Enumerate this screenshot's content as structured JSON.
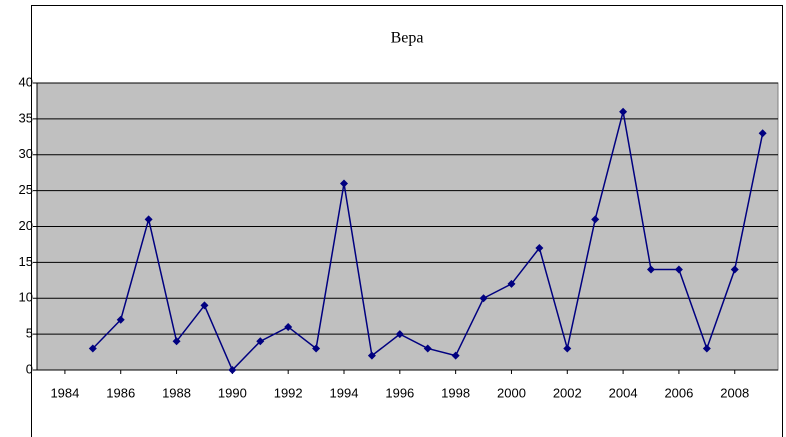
{
  "chart_data": {
    "type": "line",
    "title": "Вера",
    "x": [
      1985,
      1986,
      1987,
      1988,
      1989,
      1990,
      1991,
      1992,
      1993,
      1994,
      1995,
      1996,
      1997,
      1998,
      1999,
      2000,
      2001,
      2002,
      2003,
      2004,
      2005,
      2006,
      2007,
      2008,
      2009
    ],
    "series": [
      {
        "name": "Вера",
        "color": "#000080",
        "values": [
          3,
          7,
          21,
          4,
          9,
          0,
          4,
          6,
          3,
          26,
          2,
          5,
          3,
          2,
          10,
          12,
          17,
          3,
          21,
          36,
          14,
          14,
          3,
          14,
          33
        ]
      }
    ],
    "xlim": [
      1983,
      2009.55
    ],
    "xticks": [
      1984,
      1986,
      1988,
      1990,
      1992,
      1994,
      1996,
      1998,
      2000,
      2002,
      2004,
      2006,
      2008
    ],
    "ylim": [
      0,
      40
    ],
    "yticks": [
      0,
      5,
      10,
      15,
      20,
      25,
      30,
      35,
      40
    ],
    "grid": true,
    "plot_background": "#c0c0c0"
  }
}
